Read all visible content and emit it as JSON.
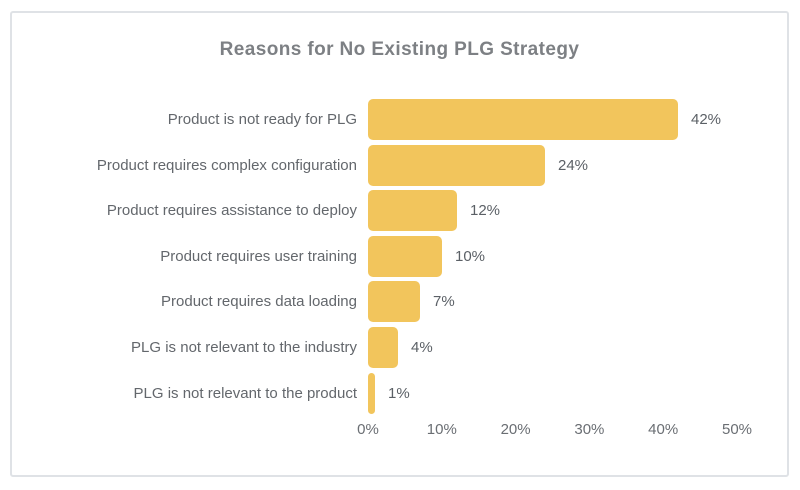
{
  "card": {
    "title": "Reasons for No Existing PLG Strategy"
  },
  "chart_data": {
    "type": "bar",
    "orientation": "horizontal",
    "title": "Reasons for No Existing PLG Strategy",
    "xlabel": "",
    "ylabel": "",
    "categories": [
      "Product is not ready for PLG",
      "Product requires complex configuration",
      "Product requires assistance to deploy",
      "Product requires user training",
      "Product requires data loading",
      "PLG is not relevant to the industry",
      "PLG is not relevant to the product"
    ],
    "values": [
      42,
      24,
      12,
      10,
      7,
      4,
      1
    ],
    "value_labels": [
      "42%",
      "24%",
      "12%",
      "10%",
      "7%",
      "4%",
      "1%"
    ],
    "x_ticks": [
      0,
      10,
      20,
      30,
      40,
      50
    ],
    "x_tick_labels": [
      "0%",
      "10%",
      "20%",
      "30%",
      "40%",
      "50%"
    ],
    "xlim": [
      0,
      50
    ],
    "grid": false,
    "legend": false,
    "bar_color": "#f2c55c",
    "label_color": "#63676c",
    "value_color": "#5b6066",
    "title_color": "#7d8084",
    "border_color": "#dfe2e6"
  }
}
